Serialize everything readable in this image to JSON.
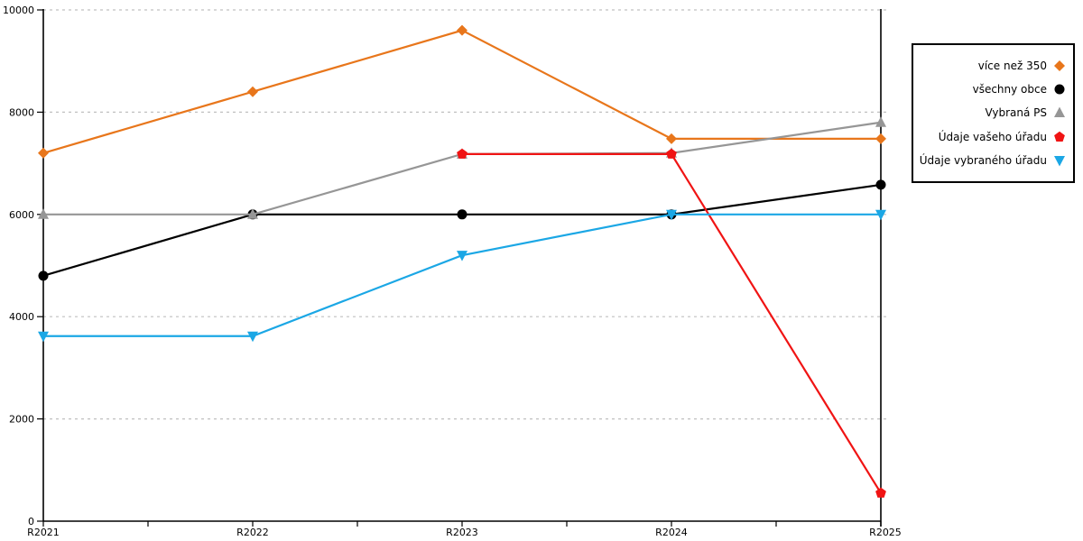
{
  "chart_data": {
    "type": "line",
    "title": "",
    "xlabel": "",
    "ylabel": "",
    "x_categories": [
      "R2021",
      "R2022",
      "R2023",
      "R2024",
      "R2025"
    ],
    "ylim": [
      0,
      10000
    ],
    "yticks": [
      0,
      2000,
      4000,
      6000,
      8000,
      10000
    ],
    "grid": "horizontal-dashed",
    "legend_position": "outside-top-right",
    "colors": {
      "axis": "#000000",
      "grid": "#C0C0C0",
      "background": "#FFFFFF"
    },
    "series": [
      {
        "name": "více než 350",
        "color": "#E8761B",
        "marker": "diamond",
        "values": [
          7200,
          8400,
          9600,
          7480,
          7480
        ]
      },
      {
        "name": "všechny obce",
        "color": "#000000",
        "marker": "circle",
        "values": [
          4800,
          6000,
          6000,
          6000,
          6580
        ]
      },
      {
        "name": "Vybraná PS",
        "color": "#969696",
        "marker": "triangle-up",
        "values": [
          6000,
          6000,
          7180,
          7200,
          7800
        ]
      },
      {
        "name": "Údaje vašeho úřadu",
        "color": "#F01414",
        "marker": "pentagon",
        "values": [
          null,
          null,
          7180,
          7180,
          550
        ]
      },
      {
        "name": "Údaje vybraného úřadu",
        "color": "#1BA7E5",
        "marker": "triangle-down",
        "values": [
          3620,
          3620,
          5200,
          6000,
          6000
        ]
      }
    ]
  }
}
